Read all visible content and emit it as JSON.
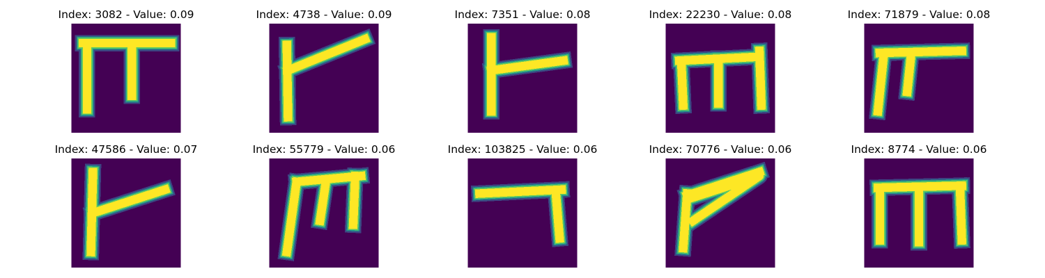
{
  "colors": {
    "background": "#440154",
    "ink_mid": "#21918c",
    "ink_edge": "#3b528b",
    "ink_core": "#fde725",
    "ink_light": "#5ec962"
  },
  "panels": [
    {
      "title": "Index: 3082 - Value: 0.09",
      "glyph": "pi"
    },
    {
      "title": "Index: 4738 - Value: 0.09",
      "glyph": "flag-rising"
    },
    {
      "title": "Index: 7351 - Value: 0.08",
      "glyph": "flag"
    },
    {
      "title": "Index: 22230 - Value: 0.08",
      "glyph": "m"
    },
    {
      "title": "Index: 71879 - Value: 0.08",
      "glyph": "pi-slanted"
    },
    {
      "title": "Index: 47586 - Value: 0.07",
      "glyph": "flag-cross"
    },
    {
      "title": "Index: 55779 - Value: 0.06",
      "glyph": "m-slanted"
    },
    {
      "title": "Index: 103825 - Value: 0.06",
      "glyph": "hook"
    },
    {
      "title": "Index: 70776 - Value: 0.06",
      "glyph": "flag-rising-2"
    },
    {
      "title": "Index: 8774 - Value: 0.06",
      "glyph": "m-2"
    }
  ]
}
